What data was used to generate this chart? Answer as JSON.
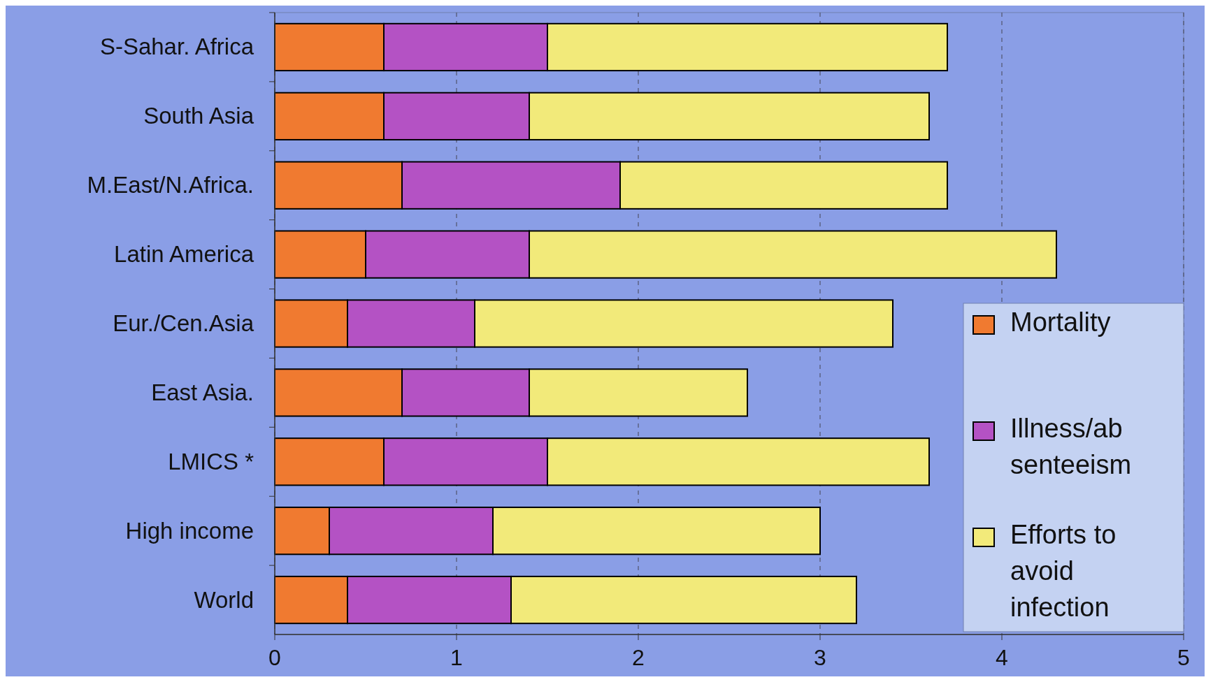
{
  "chart_data": {
    "type": "bar",
    "orientation": "horizontal",
    "stacked": true,
    "categories": [
      "S-Sahar. Africa",
      "South Asia",
      "M.East/N.Africa.",
      "Latin America",
      "Eur./Cen.Asia",
      "East Asia.",
      "LMICS *",
      "High income",
      "World"
    ],
    "series": [
      {
        "name": "Mortality",
        "color": "#f07a30",
        "values": [
          0.6,
          0.6,
          0.7,
          0.5,
          0.4,
          0.7,
          0.6,
          0.3,
          0.4
        ]
      },
      {
        "name": "Illness/ab senteeism",
        "color": "#b452c4",
        "values": [
          0.9,
          0.8,
          1.2,
          0.9,
          0.7,
          0.7,
          0.9,
          0.9,
          0.9
        ]
      },
      {
        "name": "Efforts to avoid infection",
        "color": "#f2ea7a",
        "values": [
          2.2,
          2.2,
          1.8,
          2.9,
          2.3,
          1.2,
          2.1,
          1.8,
          1.9
        ]
      }
    ],
    "xlim": [
      0,
      5
    ],
    "xticks": [
      0,
      1,
      2,
      3,
      4,
      5
    ],
    "grid": "x",
    "legend": "bottom right"
  }
}
